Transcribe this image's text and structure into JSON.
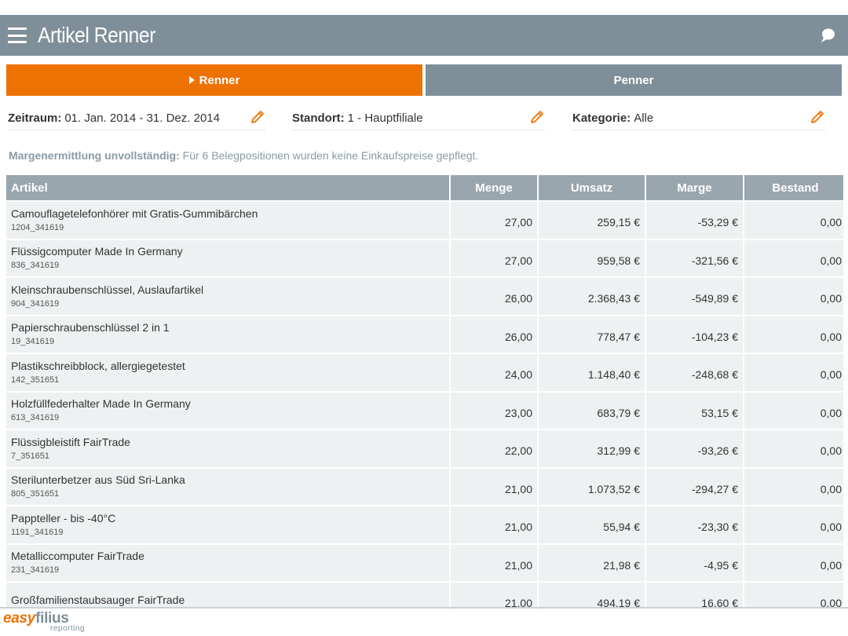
{
  "header": {
    "title": "Artikel Renner",
    "menu_icon": "hamburger-icon",
    "chat_icon": "chat-bubble-icon"
  },
  "tabs": [
    {
      "label": "Renner",
      "active": true,
      "icon": "triangle-right-icon"
    },
    {
      "label": "Penner",
      "active": false
    }
  ],
  "filters": {
    "zeitraum": {
      "label": "Zeitraum:",
      "value": "01. Jan. 2014 - 31. Dez. 2014"
    },
    "standort": {
      "label": "Standort:",
      "value": "1 - Hauptfiliale"
    },
    "kategorie": {
      "label": "Kategorie:",
      "value": "Alle"
    }
  },
  "notice": {
    "title": "Margenermittlung unvollständig:",
    "text": "Für 6 Belegpositionen wurden keine Einkaufspreise gepflegt."
  },
  "table": {
    "columns": [
      "Artikel",
      "Menge",
      "Umsatz",
      "Marge",
      "Bestand"
    ],
    "rows": [
      {
        "name": "Camouflagetelefonhörer mit Gratis-Gummibärchen",
        "id": "1204_341619",
        "menge": "27,00",
        "umsatz": "259,15 €",
        "marge": "-53,29 €",
        "bestand": "0,00"
      },
      {
        "name": "Flüssigcomputer Made In Germany",
        "id": "836_341619",
        "menge": "27,00",
        "umsatz": "959,58 €",
        "marge": "-321,56 €",
        "bestand": "0,00"
      },
      {
        "name": "Kleinschraubenschlüssel, Auslaufartikel",
        "id": "904_341619",
        "menge": "26,00",
        "umsatz": "2.368,43 €",
        "marge": "-549,89 €",
        "bestand": "0,00"
      },
      {
        "name": "Papierschraubenschlüssel 2 in 1",
        "id": "19_341619",
        "menge": "26,00",
        "umsatz": "778,47 €",
        "marge": "-104,23 €",
        "bestand": "0,00"
      },
      {
        "name": "Plastikschreibblock, allergiegetestet",
        "id": "142_351651",
        "menge": "24,00",
        "umsatz": "1.148,40 €",
        "marge": "-248,68 €",
        "bestand": "0,00"
      },
      {
        "name": "Holzfüllfederhalter Made In Germany",
        "id": "613_341619",
        "menge": "23,00",
        "umsatz": "683,79 €",
        "marge": "53,15 €",
        "bestand": "0,00"
      },
      {
        "name": "Flüssigbleistift FairTrade",
        "id": "7_351651",
        "menge": "22,00",
        "umsatz": "312,99 €",
        "marge": "-93,26 €",
        "bestand": "0,00"
      },
      {
        "name": "Sterilunterbetzer aus Süd Sri-Lanka",
        "id": "805_351651",
        "menge": "21,00",
        "umsatz": "1.073,52 €",
        "marge": "-294,27 €",
        "bestand": "0,00"
      },
      {
        "name": "Pappteller - bis -40°C",
        "id": "1191_341619",
        "menge": "21,00",
        "umsatz": "55,94 €",
        "marge": "-23,30 €",
        "bestand": "0,00"
      },
      {
        "name": "Metalliccomputer FairTrade",
        "id": "231_341619",
        "menge": "21,00",
        "umsatz": "21,98 €",
        "marge": "-4,95 €",
        "bestand": "0,00"
      },
      {
        "name": "Großfamilienstaubsauger FairTrade",
        "id": "",
        "menge": "21,00",
        "umsatz": "494,19 €",
        "marge": "16,60 €",
        "bestand": "0,00"
      }
    ]
  },
  "logo": {
    "easy": "easy",
    "filius": "filius",
    "sub": "reporting"
  },
  "colors": {
    "accent": "#ee7203",
    "header": "#7f8f99",
    "table_header": "#99a6ae",
    "row": "#eef1f2"
  }
}
